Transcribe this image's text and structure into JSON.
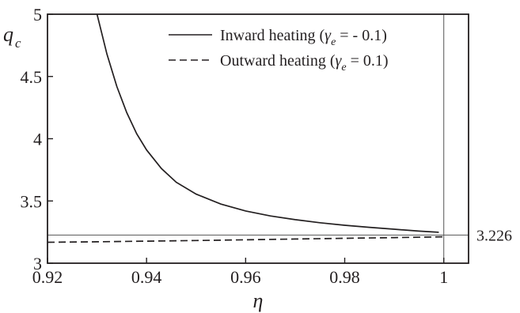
{
  "chart_data": {
    "type": "line",
    "xlim": [
      0.92,
      1.005
    ],
    "ylim": [
      3,
      5
    ],
    "x_ticks": [
      0.92,
      0.94,
      0.96,
      0.98,
      1
    ],
    "x_tick_labels": [
      "0.92",
      "0.94",
      "0.96",
      "0.98",
      "1"
    ],
    "y_ticks": [
      3,
      3.5,
      4,
      4.5,
      5
    ],
    "y_tick_labels": [
      "3",
      "3.5",
      "4",
      "4.5",
      "5"
    ],
    "xlabel": "η",
    "ylabel": {
      "main": "q",
      "sub": "c"
    },
    "grid": false,
    "legend_position": "top-right",
    "colors": {
      "line": "#231f20",
      "frame": "#231f20",
      "reference": "#555555"
    },
    "series": [
      {
        "legend_prefix": "Inward heating (",
        "legend_symbol": "γ",
        "legend_sub": "e",
        "legend_suffix": " = - 0.1)",
        "style": "solid",
        "x": [
          0.93,
          0.932,
          0.934,
          0.936,
          0.938,
          0.94,
          0.943,
          0.946,
          0.95,
          0.955,
          0.96,
          0.965,
          0.97,
          0.975,
          0.98,
          0.985,
          0.99,
          0.995,
          0.999
        ],
        "y": [
          5.0,
          4.68,
          4.42,
          4.21,
          4.04,
          3.91,
          3.76,
          3.65,
          3.555,
          3.475,
          3.42,
          3.38,
          3.35,
          3.325,
          3.305,
          3.288,
          3.273,
          3.258,
          3.248
        ]
      },
      {
        "legend_prefix": "Outward heating  (",
        "legend_symbol": "γ",
        "legend_sub": "e",
        "legend_suffix": " = 0.1)",
        "style": "dashed",
        "x": [
          0.92,
          0.93,
          0.94,
          0.95,
          0.96,
          0.97,
          0.98,
          0.99,
          1.0
        ],
        "y": [
          3.168,
          3.172,
          3.177,
          3.182,
          3.188,
          3.194,
          3.2,
          3.206,
          3.212
        ]
      }
    ],
    "reference_lines": {
      "horizontal": {
        "y": 3.226,
        "label": "3.226"
      },
      "vertical": {
        "x": 1
      }
    }
  }
}
